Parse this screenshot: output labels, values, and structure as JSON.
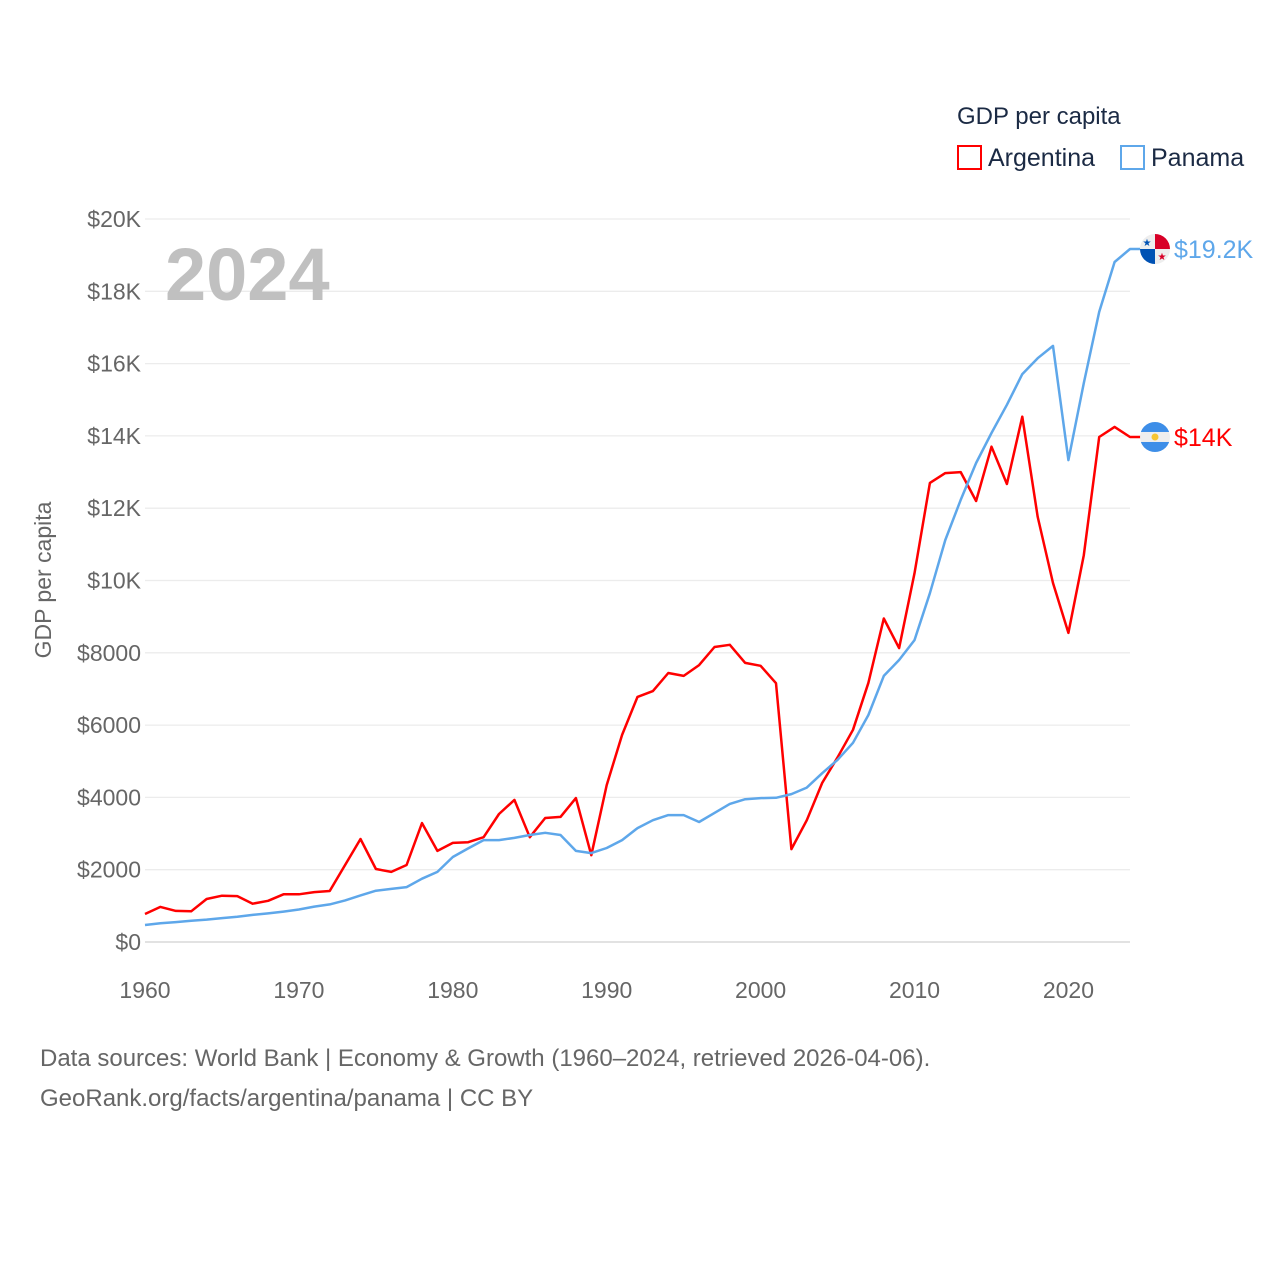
{
  "chart_data": {
    "type": "line",
    "title": "GDP per capita",
    "ylabel": "GDP per capita",
    "xlabel": "",
    "year_label": "2024",
    "xlim": [
      1960,
      2024
    ],
    "ylim": [
      0,
      20000
    ],
    "x_ticks": [
      1960,
      1970,
      1980,
      1990,
      2000,
      2010,
      2020
    ],
    "y_ticks": [
      0,
      2000,
      4000,
      6000,
      8000,
      10000,
      12000,
      14000,
      16000,
      18000,
      20000
    ],
    "y_tick_labels": [
      "$0",
      "$2000",
      "$4000",
      "$6000",
      "$8000",
      "$10K",
      "$12K",
      "$14K",
      "$16K",
      "$18K",
      "$20K"
    ],
    "grid": true,
    "legend_placement": "top-right",
    "x_start": 1960,
    "series": [
      {
        "name": "Argentina",
        "color": "#ff0000",
        "end_label": "$14K",
        "flag": "argentina-flag",
        "values": [
          775,
          970,
          860,
          850,
          1190,
          1280,
          1270,
          1060,
          1140,
          1320,
          1320,
          1380,
          1410,
          2130,
          2850,
          2020,
          1940,
          2130,
          3290,
          2520,
          2740,
          2760,
          2900,
          3540,
          3930,
          2900,
          3430,
          3460,
          3980,
          2400,
          4340,
          5730,
          6780,
          6940,
          7440,
          7360,
          7660,
          8160,
          8220,
          7720,
          7640,
          7160,
          2570,
          3370,
          4400,
          5110,
          5870,
          7170,
          8950,
          8130,
          10200,
          12700,
          12970,
          13000,
          12200,
          13700,
          12670,
          14530,
          11760,
          9930,
          8550,
          10700,
          13970,
          14250,
          13970
        ]
      },
      {
        "name": "Panama",
        "color": "#5ea7ea",
        "end_label": "$19.2K",
        "flag": "panama-flag",
        "values": [
          470,
          520,
          550,
          590,
          620,
          660,
          700,
          750,
          790,
          840,
          900,
          980,
          1040,
          1150,
          1290,
          1420,
          1470,
          1520,
          1750,
          1940,
          2350,
          2590,
          2820,
          2820,
          2880,
          2960,
          3020,
          2960,
          2520,
          2460,
          2600,
          2820,
          3150,
          3370,
          3510,
          3510,
          3320,
          3570,
          3820,
          3950,
          3980,
          3990,
          4090,
          4270,
          4670,
          5040,
          5510,
          6280,
          7360,
          7800,
          8350,
          9650,
          11120,
          12230,
          13250,
          14080,
          14860,
          15710,
          16150,
          16490,
          13330,
          15460,
          17430,
          18810,
          19170
        ]
      }
    ]
  },
  "footer": {
    "line1": "Data sources: World Bank | Economy & Growth (1960–2024, retrieved 2026-04-06).",
    "line2": "GeoRank.org/facts/argentina/panama | CC BY"
  }
}
